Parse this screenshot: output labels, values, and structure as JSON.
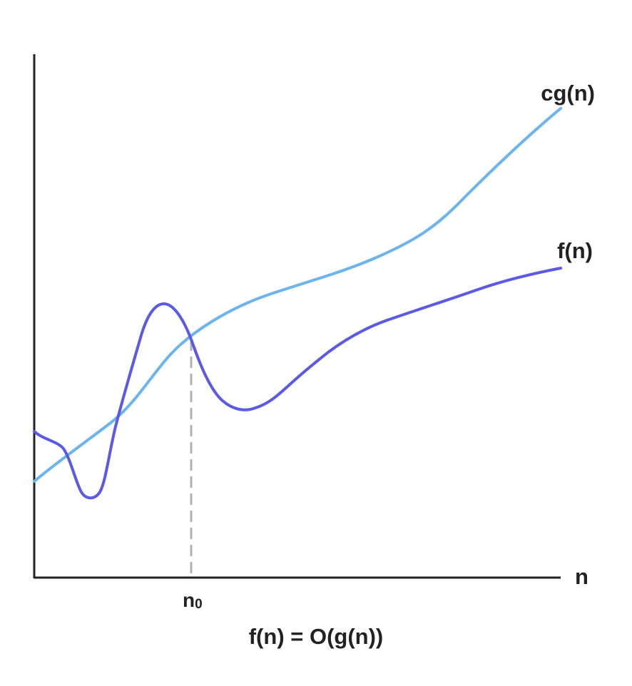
{
  "diagram": {
    "x_axis_label": "n",
    "threshold_label": "n",
    "threshold_subscript": "0",
    "caption": "f(n) = O(g(n))",
    "curves": [
      {
        "name": "cg(n)",
        "color": "#6cb4f0"
      },
      {
        "name": "f(n)",
        "color": "#5a5ae6"
      }
    ],
    "axis_color": "#222222",
    "threshold_line_color": "#b3b3b3",
    "threshold_line_style": "dashed"
  }
}
